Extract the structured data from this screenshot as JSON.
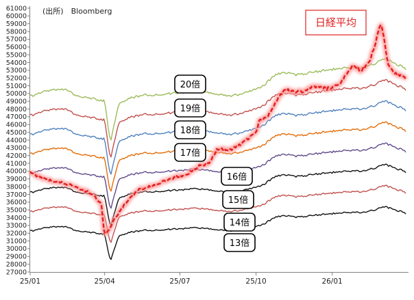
{
  "chart_data": {
    "type": "line",
    "source": "(出所)　Bloomberg",
    "x_ticks": [
      "25/01",
      "25/04",
      "25/07",
      "25/10",
      "26/01"
    ],
    "y_ticks": [
      "27000",
      "28000",
      "29000",
      "30000",
      "31000",
      "32000",
      "33000",
      "34000",
      "35000",
      "36000",
      "37000",
      "38000",
      "39000",
      "40000",
      "41000",
      "42000",
      "43000",
      "44000",
      "45000",
      "46000",
      "47000",
      "48000",
      "49000",
      "50000",
      "51000",
      "52000",
      "53000",
      "54000",
      "55000",
      "56000",
      "57000",
      "58000",
      "59000",
      "60000",
      "61000"
    ],
    "ylim": [
      27000,
      61000
    ],
    "x_range": [
      "2025-01-01",
      "2026-03-31"
    ],
    "grid": false,
    "per_base_eps": {
      "dates": [
        "2025-01-01",
        "2025-01-20",
        "2025-02-10",
        "2025-03-01",
        "2025-03-20",
        "2025-04-01",
        "2025-04-08",
        "2025-04-18",
        "2025-05-01",
        "2025-05-20",
        "2025-06-10",
        "2025-07-01",
        "2025-07-20",
        "2025-08-10",
        "2025-09-01",
        "2025-09-20",
        "2025-10-10",
        "2025-10-25",
        "2025-11-05",
        "2025-11-20",
        "2025-12-10",
        "2026-01-01",
        "2026-01-20",
        "2026-02-10",
        "2026-02-25",
        "2026-03-05",
        "2026-03-20",
        "2026-03-31"
      ],
      "values": [
        2482,
        2515,
        2530,
        2480,
        2465,
        2452,
        2180,
        2433,
        2472,
        2490,
        2495,
        2505,
        2520,
        2500,
        2485,
        2505,
        2550,
        2625,
        2635,
        2620,
        2640,
        2655,
        2665,
        2670,
        2700,
        2725,
        2690,
        2660
      ]
    },
    "series": [
      {
        "name": "20倍",
        "per": 20,
        "color": "#9bbb59"
      },
      {
        "name": "19倍",
        "per": 19,
        "color": "#c0504d"
      },
      {
        "name": "18倍",
        "per": 18,
        "color": "#4f81bd"
      },
      {
        "name": "17倍",
        "per": 17,
        "color": "#e36c09"
      },
      {
        "name": "16倍",
        "per": 16,
        "color": "#604a8b"
      },
      {
        "name": "15倍",
        "per": 15,
        "color": "#111111"
      },
      {
        "name": "14倍",
        "per": 14,
        "color": "#c0504d"
      },
      {
        "name": "13倍",
        "per": 13,
        "color": "#111111"
      }
    ],
    "nikkei": {
      "name": "日経平均",
      "color": "#e02020",
      "dates": [
        "2025-01-01",
        "2025-01-20",
        "2025-02-10",
        "2025-03-01",
        "2025-03-15",
        "2025-03-28",
        "2025-04-01",
        "2025-04-08",
        "2025-04-14",
        "2025-04-25",
        "2025-05-10",
        "2025-05-25",
        "2025-06-10",
        "2025-06-25",
        "2025-07-10",
        "2025-07-25",
        "2025-08-05",
        "2025-08-15",
        "2025-09-01",
        "2025-09-15",
        "2025-09-25",
        "2025-10-01",
        "2025-10-05",
        "2025-10-15",
        "2025-10-25",
        "2025-11-05",
        "2025-11-20",
        "2025-12-01",
        "2025-12-10",
        "2025-12-25",
        "2026-01-10",
        "2026-01-25",
        "2026-02-05",
        "2026-02-15",
        "2026-02-25",
        "2026-03-01",
        "2026-03-05",
        "2026-03-10",
        "2026-03-20",
        "2026-03-31"
      ],
      "values": [
        39800,
        38900,
        38500,
        37800,
        37200,
        35800,
        31700,
        32800,
        34000,
        35700,
        37500,
        38000,
        38600,
        39200,
        39600,
        40700,
        41000,
        42800,
        42800,
        43600,
        44500,
        45000,
        46500,
        47000,
        49000,
        50500,
        50200,
        50400,
        51000,
        50600,
        51200,
        53600,
        53000,
        54000,
        57500,
        59000,
        57000,
        53500,
        52500,
        51900
      ]
    },
    "annotations": [
      {
        "text": "20倍",
        "series": "20倍"
      },
      {
        "text": "19倍",
        "series": "19倍"
      },
      {
        "text": "18倍",
        "series": "18倍"
      },
      {
        "text": "17倍",
        "series": "17倍"
      },
      {
        "text": "16倍",
        "series": "16倍"
      },
      {
        "text": "15倍",
        "series": "15倍"
      },
      {
        "text": "14倍",
        "series": "14倍"
      },
      {
        "text": "13倍",
        "series": "13倍"
      },
      {
        "text": "日経平均",
        "series": "日経平均"
      }
    ]
  }
}
